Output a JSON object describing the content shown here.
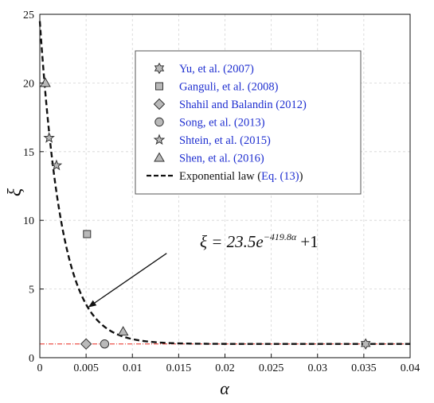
{
  "chart_data": {
    "type": "scatter",
    "xlabel": "α",
    "ylabel": "ξ",
    "xlim": [
      0,
      0.04
    ],
    "ylim": [
      0,
      25
    ],
    "x_ticks": [
      "0",
      "0.005",
      "0.01",
      "0.015",
      "0.02",
      "0.025",
      "0.03",
      "0.035",
      "0.04"
    ],
    "y_ticks": [
      "0",
      "5",
      "10",
      "15",
      "20",
      "25"
    ],
    "grid": "dashed",
    "legend_placement": "top-right",
    "reference_line_y": 1,
    "reference_line_color": "#e8261c",
    "series": [
      {
        "name": "Yu, et al. (2007)",
        "marker": "hexagram",
        "points": [
          [
            0.0352,
            1.0
          ]
        ]
      },
      {
        "name": "Ganguli, et al. (2008)",
        "marker": "square",
        "points": [
          [
            0.0051,
            9.0
          ]
        ]
      },
      {
        "name": "Shahil and Balandin (2012)",
        "marker": "diamond",
        "points": [
          [
            0.005,
            1.0
          ]
        ]
      },
      {
        "name": "Song, et al. (2013)",
        "marker": "circle",
        "points": [
          [
            0.007,
            1.0
          ]
        ]
      },
      {
        "name": "Shtein, et al. (2015)",
        "marker": "star",
        "points": [
          [
            0.001,
            16.0
          ],
          [
            0.0018,
            14.0
          ]
        ]
      },
      {
        "name": "Shen, et al. (2016)",
        "marker": "triangle",
        "points": [
          [
            0.0006,
            20.0
          ],
          [
            0.009,
            1.9
          ]
        ]
      }
    ],
    "fit": {
      "name": "Exponential law (Eq. (13))",
      "name_parts": [
        "Exponential law (",
        "Eq. (13)",
        ")"
      ],
      "a": 23.5,
      "b": -419.8,
      "c": 1,
      "style": "dashed"
    },
    "annotation": {
      "lhs": "ξ = 23.5e",
      "exponent": "−419.8α",
      "rhs": " +1",
      "arrow_from": [
        0.0137,
        7.6
      ],
      "arrow_to": [
        0.0053,
        3.7
      ]
    }
  }
}
